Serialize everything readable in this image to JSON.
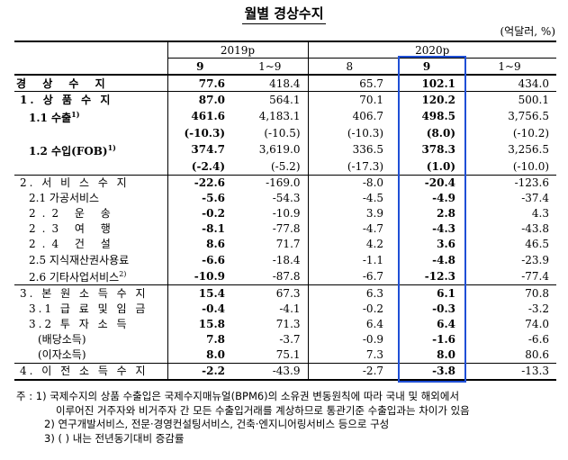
{
  "title": "월별 경상수지",
  "unit": "(억달러, %)",
  "header": {
    "year_2019": "2019p",
    "year_2020": "2020p",
    "cols": [
      "9",
      "1~9",
      "8",
      "9",
      "1~9"
    ]
  },
  "rows": [
    {
      "label": "경 상 수 지",
      "vals": [
        "77.6",
        "418.4",
        "65.7",
        "102.1",
        "434.0"
      ]
    },
    {
      "label": "1. 상 품 수 지",
      "vals": [
        "87.0",
        "564.1",
        "70.1",
        "120.2",
        "500.1"
      ]
    },
    {
      "label": "1.1 수출",
      "sup": "1)",
      "vals": [
        "461.6",
        "4,183.1",
        "406.7",
        "498.5",
        "3,756.5"
      ]
    },
    {
      "label": "",
      "vals": [
        "(-10.3)",
        "(-10.5)",
        "(-10.3)",
        "(8.0)",
        "(-10.2)"
      ]
    },
    {
      "label": "1.2 수입(FOB)",
      "sup": "1)",
      "vals": [
        "374.7",
        "3,619.0",
        "336.5",
        "378.3",
        "3,256.5"
      ]
    },
    {
      "label": "",
      "vals": [
        "(-2.4)",
        "(-5.2)",
        "(-17.3)",
        "(1.0)",
        "(-10.0)"
      ]
    },
    {
      "label": "2. 서 비 스 수 지",
      "vals": [
        "-22.6",
        "-169.0",
        "-8.0",
        "-20.4",
        "-123.6"
      ]
    },
    {
      "label": "2.1 가공서비스",
      "vals": [
        "-5.6",
        "-54.3",
        "-4.5",
        "-4.9",
        "-37.4"
      ]
    },
    {
      "label": "2.2 운 송",
      "vals": [
        "-0.2",
        "-10.9",
        "3.9",
        "2.8",
        "4.3"
      ]
    },
    {
      "label": "2.3 여 행",
      "vals": [
        "-8.1",
        "-77.8",
        "-4.7",
        "-4.3",
        "-43.8"
      ]
    },
    {
      "label": "2.4 건 설",
      "vals": [
        "8.6",
        "71.7",
        "4.2",
        "3.6",
        "46.5"
      ]
    },
    {
      "label": "2.5 지식재산권사용료",
      "vals": [
        "-6.6",
        "-18.4",
        "-1.1",
        "-4.8",
        "-23.9"
      ]
    },
    {
      "label": "2.6 기타사업서비스",
      "sup": "2)",
      "vals": [
        "-10.9",
        "-87.8",
        "-6.7",
        "-12.3",
        "-77.4"
      ]
    },
    {
      "label": "3. 본 원 소 득 수 지",
      "vals": [
        "15.4",
        "67.3",
        "6.3",
        "6.1",
        "70.8"
      ]
    },
    {
      "label": "3.1 급 료 및 임 금",
      "vals": [
        "-0.4",
        "-4.1",
        "-0.2",
        "-0.3",
        "-3.2"
      ]
    },
    {
      "label": "3.2 투 자 소 득",
      "vals": [
        "15.8",
        "71.3",
        "6.4",
        "6.4",
        "74.0"
      ]
    },
    {
      "label": "(배당소득)",
      "vals": [
        "7.8",
        "-3.7",
        "-0.9",
        "-1.6",
        "-6.6"
      ]
    },
    {
      "label": "(이자소득)",
      "vals": [
        "8.0",
        "75.1",
        "7.3",
        "8.0",
        "80.6"
      ]
    },
    {
      "label": "4. 이 전 소 득 수 지",
      "vals": [
        "-2.2",
        "-43.9",
        "-2.7",
        "-3.8",
        "-13.3"
      ]
    }
  ],
  "notes": [
    "주 : 1) 국제수지의 상품 수출입은 국제수지매뉴얼(BPM6)의 소유권 변동원칙에 따라 국내 및 해외에서",
    "이루어진 거주자와 비거주자 간 모든 수출입거래를 계상하므로 통관기준 수출입과는 차이가 있음",
    "2) 연구개발서비스, 전문·경영컨설팅서비스, 건축·엔지니어링서비스 등으로 구성",
    "3) ( ) 내는 전년동기대비 증감률"
  ],
  "highlight_color": "#1f4fd6"
}
